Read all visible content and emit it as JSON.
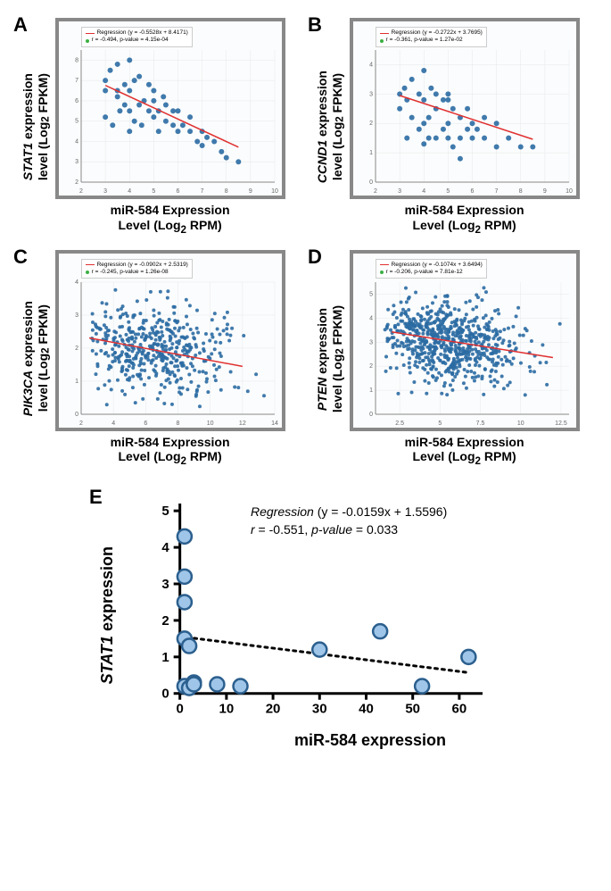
{
  "panels": {
    "A": {
      "label": "A",
      "ylabel_gene": "STAT1",
      "ylabel_rest": " expression",
      "ylabel_line2": "level (Log",
      "ylabel_sub": "2",
      "ylabel_unit": " FPKM)",
      "xlabel_line1": "miR-584 Expression",
      "xlabel_line2": "Level (Log",
      "xlabel_sub": "2",
      "xlabel_unit": " RPM)",
      "regression_text": "Regression (y = -0.5528x + 8.4171)",
      "stats_text": "r = -0.494, p-value = 4.15e-04",
      "xticks": [
        2,
        3,
        4,
        5,
        6,
        7,
        8,
        9,
        10
      ],
      "yticks": [
        2,
        3,
        4,
        5,
        6,
        7,
        8
      ],
      "xlim": [
        2,
        10
      ],
      "ylim": [
        2,
        8.5
      ],
      "line_color": "#e03030",
      "marker_color": "#2b6ca3",
      "marker_size": 3,
      "points": [
        [
          3,
          7
        ],
        [
          3,
          6.5
        ],
        [
          3,
          5.2
        ],
        [
          3.2,
          7.5
        ],
        [
          3.3,
          4.8
        ],
        [
          3.5,
          6.2
        ],
        [
          3.5,
          7.8
        ],
        [
          3.6,
          5.5
        ],
        [
          3.8,
          6.8
        ],
        [
          3.8,
          5.8
        ],
        [
          4,
          5.5
        ],
        [
          4,
          6.5
        ],
        [
          4,
          4.5
        ],
        [
          4.2,
          7
        ],
        [
          4.2,
          5
        ],
        [
          4.4,
          5.8
        ],
        [
          4.4,
          7.2
        ],
        [
          4.5,
          4.8
        ],
        [
          4.6,
          6
        ],
        [
          4.8,
          5.5
        ],
        [
          4.8,
          6.8
        ],
        [
          5,
          5.2
        ],
        [
          5,
          6
        ],
        [
          5.2,
          5.5
        ],
        [
          5.2,
          4.5
        ],
        [
          5.4,
          6.2
        ],
        [
          5.5,
          5
        ],
        [
          5.5,
          5.8
        ],
        [
          5.8,
          4.8
        ],
        [
          5.8,
          5.5
        ],
        [
          6,
          4.5
        ],
        [
          6,
          5.5
        ],
        [
          6.2,
          4.8
        ],
        [
          6.5,
          4.5
        ],
        [
          6.5,
          5.2
        ],
        [
          6.8,
          4
        ],
        [
          7,
          4.5
        ],
        [
          7,
          3.8
        ],
        [
          7.2,
          4.2
        ],
        [
          7.5,
          4
        ],
        [
          7.8,
          3.5
        ],
        [
          8,
          3.2
        ],
        [
          8.5,
          3
        ],
        [
          4,
          8
        ],
        [
          5,
          6.5
        ],
        [
          3.5,
          6.5
        ]
      ],
      "reg_line": {
        "x1": 3,
        "y1": 6.76,
        "x2": 8.5,
        "y2": 3.72
      }
    },
    "B": {
      "label": "B",
      "ylabel_gene": "CCND1",
      "ylabel_rest": " expression",
      "ylabel_line2": "level (Log",
      "ylabel_sub": "2",
      "ylabel_unit": " FPKM)",
      "xlabel_line1": "miR-584 Expression",
      "xlabel_line2": "Level (Log",
      "xlabel_sub": "2",
      "xlabel_unit": " RPM)",
      "regression_text": "Regression (y = -0.2722x + 3.7695)",
      "stats_text": "r = -0.361, p-value = 1.27e-02",
      "xticks": [
        2,
        3,
        4,
        5,
        6,
        7,
        8,
        9,
        10
      ],
      "yticks": [
        0,
        1,
        2,
        3,
        4
      ],
      "xlim": [
        2,
        10
      ],
      "ylim": [
        0,
        4.5
      ],
      "line_color": "#e03030",
      "marker_color": "#2b6ca3",
      "marker_size": 3,
      "points": [
        [
          3,
          3
        ],
        [
          3.2,
          3.2
        ],
        [
          3.3,
          1.5
        ],
        [
          3.5,
          3.5
        ],
        [
          3.5,
          2.2
        ],
        [
          3.8,
          3
        ],
        [
          3.8,
          1.8
        ],
        [
          4,
          2.8
        ],
        [
          4,
          2
        ],
        [
          4,
          3.8
        ],
        [
          4.2,
          2.2
        ],
        [
          4.3,
          3.2
        ],
        [
          4.5,
          1.5
        ],
        [
          4.5,
          2.5
        ],
        [
          4.8,
          2.8
        ],
        [
          4.8,
          1.8
        ],
        [
          5,
          2
        ],
        [
          5,
          2.8
        ],
        [
          5.2,
          2.5
        ],
        [
          5.2,
          1.2
        ],
        [
          5.5,
          2.2
        ],
        [
          5.5,
          0.8
        ],
        [
          5.8,
          1.8
        ],
        [
          5.8,
          2.5
        ],
        [
          6,
          1.5
        ],
        [
          6,
          2
        ],
        [
          6.2,
          1.8
        ],
        [
          6.5,
          1.5
        ],
        [
          6.5,
          2.2
        ],
        [
          7,
          1.2
        ],
        [
          7,
          2
        ],
        [
          7.5,
          1.5
        ],
        [
          8,
          1.2
        ],
        [
          8.5,
          1.2
        ],
        [
          3,
          2.5
        ],
        [
          4.2,
          1.5
        ],
        [
          3.3,
          2.8
        ],
        [
          4,
          1.3
        ],
        [
          5,
          1.5
        ],
        [
          5.5,
          1.5
        ],
        [
          5,
          3
        ],
        [
          4.5,
          3
        ]
      ],
      "reg_line": {
        "x1": 3,
        "y1": 2.95,
        "x2": 8.5,
        "y2": 1.46
      }
    },
    "C": {
      "label": "C",
      "ylabel_gene": "PIK3CA",
      "ylabel_rest": " expression",
      "ylabel_line2": "level (Log",
      "ylabel_sub": "2",
      "ylabel_unit": " FPKM)",
      "xlabel_line1": "miR-584 Expression",
      "xlabel_line2": "Level (Log",
      "xlabel_sub": "2",
      "xlabel_unit": " RPM)",
      "regression_text": "Regression (y = -0.0902x + 2.5319)",
      "stats_text": "r = -0.245, p-value = 1.26e-08",
      "xticks": [
        2,
        4,
        6,
        8,
        10,
        12,
        14
      ],
      "yticks": [
        0,
        1,
        2,
        3,
        4
      ],
      "xlim": [
        2,
        14
      ],
      "ylim": [
        0,
        4
      ],
      "line_color": "#e03030",
      "marker_color": "#2b6ca3",
      "marker_size": 2,
      "dense": true,
      "n_points": 500,
      "cloud_center": [
        6,
        2
      ],
      "cloud_spread": [
        2.5,
        0.7
      ],
      "reg_line": {
        "x1": 2.5,
        "y1": 2.31,
        "x2": 12,
        "y2": 1.45
      }
    },
    "D": {
      "label": "D",
      "ylabel_gene": "PTEN",
      "ylabel_rest": " expression",
      "ylabel_line2": "level (Log",
      "ylabel_sub": "2",
      "ylabel_unit": " FPKM)",
      "xlabel_line1": "miR-584 Expression",
      "xlabel_line2": "Level (Log",
      "xlabel_sub": "2",
      "xlabel_unit": " RPM)",
      "regression_text": "Regression (y = -0.1074x + 3.6494)",
      "stats_text": "r = -0.206, p-value = 7.81e-12",
      "xticks": [
        2.5,
        5,
        7.5,
        10,
        12.5
      ],
      "yticks": [
        0,
        1,
        2,
        3,
        4,
        5
      ],
      "xlim": [
        1,
        13
      ],
      "ylim": [
        0,
        5.5
      ],
      "line_color": "#e03030",
      "marker_color": "#2b6ca3",
      "marker_size": 2,
      "dense": true,
      "n_points": 700,
      "cloud_center": [
        5.5,
        3
      ],
      "cloud_spread": [
        2.2,
        0.8
      ],
      "reg_line": {
        "x1": 2,
        "y1": 3.43,
        "x2": 12,
        "y2": 2.36
      }
    }
  },
  "panel_e": {
    "label": "E",
    "ylabel_gene": "STAT1",
    "ylabel_rest": " expression",
    "xlabel": "miR-584 expression",
    "regression_label": "Regression",
    "regression_eq": " (y = -0.0159x + 1.5596)",
    "r_label": "r",
    "r_val": " = -0.551, ",
    "p_label": "p-value ",
    "p_val": " = 0.033",
    "xticks": [
      0,
      10,
      20,
      30,
      40,
      50,
      60
    ],
    "yticks": [
      0,
      1,
      2,
      3,
      4,
      5
    ],
    "xlim": [
      -3,
      65
    ],
    "ylim": [
      -0.3,
      5.2
    ],
    "marker_fill": "#9fc5e8",
    "marker_stroke": "#2b5f8e",
    "marker_size": 8,
    "line_style": "dotted",
    "line_color": "#000000",
    "points": [
      [
        1,
        4.3
      ],
      [
        1,
        3.2
      ],
      [
        1,
        2.5
      ],
      [
        1,
        1.5
      ],
      [
        2,
        1.3
      ],
      [
        1,
        0.2
      ],
      [
        2,
        0.15
      ],
      [
        3,
        0.3
      ],
      [
        3,
        0.25
      ],
      [
        8,
        0.25
      ],
      [
        13,
        0.2
      ],
      [
        30,
        1.2
      ],
      [
        43,
        1.7
      ],
      [
        52,
        0.2
      ],
      [
        62,
        1.0
      ]
    ],
    "reg_line": {
      "x1": 0,
      "y1": 1.56,
      "x2": 62,
      "y2": 0.57
    }
  },
  "colors": {
    "plot_border": "#888888",
    "grid": "#e5e8eb",
    "axis": "#888888",
    "tick_text": "#666666",
    "bg": "#ffffff"
  }
}
